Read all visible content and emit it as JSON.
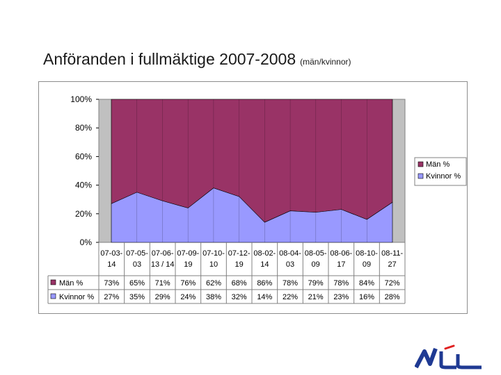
{
  "title": {
    "main": "Anföranden i fullmäktige 2007-2008",
    "sub": "(män/kvinnor)"
  },
  "chart_data": {
    "type": "area",
    "stacked": true,
    "percent": true,
    "categories": [
      "07-03-14",
      "07-05-03",
      "07-06-13 / 14",
      "07-09-19",
      "07-10-10",
      "07-12-19",
      "08-02-14",
      "08-04-03",
      "08-05-09",
      "08-06-17",
      "08-10-09",
      "08-11-27"
    ],
    "category_lines": [
      [
        "07-03-",
        "14"
      ],
      [
        "07-05-",
        "03"
      ],
      [
        "07-06-",
        "13 / 14"
      ],
      [
        "07-09-",
        "19"
      ],
      [
        "07-10-",
        "10"
      ],
      [
        "07-12-",
        "19"
      ],
      [
        "08-02-",
        "14"
      ],
      [
        "08-04-",
        "03"
      ],
      [
        "08-05-",
        "09"
      ],
      [
        "08-06-",
        "17"
      ],
      [
        "08-10-",
        "09"
      ],
      [
        "08-11-",
        "27"
      ]
    ],
    "series": [
      {
        "name": "Män %",
        "color": "#993366",
        "values": [
          73,
          65,
          71,
          76,
          62,
          68,
          86,
          78,
          79,
          78,
          84,
          72
        ],
        "labels": [
          "73%",
          "65%",
          "71%",
          "76%",
          "62%",
          "68%",
          "86%",
          "78%",
          "79%",
          "78%",
          "84%",
          "72%"
        ]
      },
      {
        "name": "Kvinnor %",
        "color": "#9999ff",
        "values": [
          27,
          35,
          29,
          24,
          38,
          32,
          14,
          22,
          21,
          23,
          16,
          28
        ],
        "labels": [
          "27%",
          "35%",
          "29%",
          "24%",
          "38%",
          "32%",
          "14%",
          "22%",
          "21%",
          "23%",
          "16%",
          "28%"
        ]
      }
    ],
    "yticks": [
      "100%",
      "80%",
      "60%",
      "40%",
      "20%",
      "0%"
    ],
    "ylim": [
      0,
      100
    ],
    "plot_background": "#c0c0c0",
    "legend_position": "right",
    "data_table": true
  }
}
